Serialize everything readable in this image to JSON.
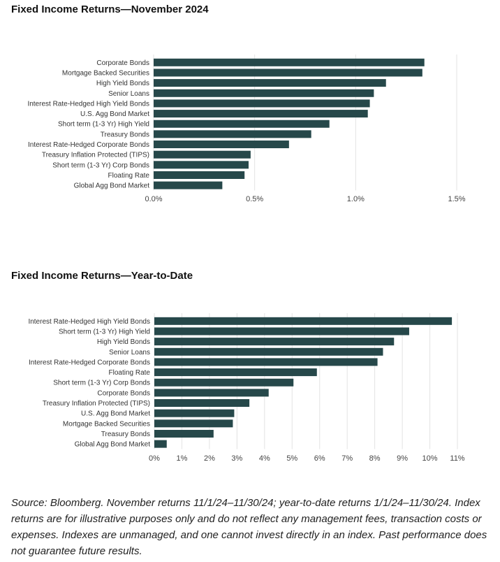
{
  "colors": {
    "bar": "#26484a",
    "grid": "#e3e3e3"
  },
  "chart_data": [
    {
      "type": "bar",
      "orientation": "horizontal",
      "title": "Fixed Income Returns—November 2024",
      "categories": [
        "Corporate Bonds",
        "Mortgage Backed Securities",
        "High Yield Bonds",
        "Senior Loans",
        "Interest Rate-Hedged High Yield Bonds",
        "U.S. Agg Bond Market",
        "Short term (1-3 Yr) High Yield",
        "Treasury Bonds",
        "Interest Rate-Hedged Corporate Bonds",
        "Treasury Inflation Protected (TIPS)",
        "Short term (1-3 Yr) Corp Bonds",
        "Floating Rate",
        "Global Agg Bond Market"
      ],
      "values": [
        1.34,
        1.33,
        1.15,
        1.09,
        1.07,
        1.06,
        0.87,
        0.78,
        0.67,
        0.48,
        0.47,
        0.45,
        0.34
      ],
      "xlim": [
        0,
        1.5
      ],
      "ticks": [
        0,
        0.5,
        1.0,
        1.5
      ],
      "tick_labels": [
        "0.0%",
        "0.5%",
        "1.0%",
        "1.5%"
      ],
      "grid": true
    },
    {
      "type": "bar",
      "orientation": "horizontal",
      "title": "Fixed Income Returns—Year-to-Date",
      "categories": [
        "Interest Rate-Hedged High Yield Bonds",
        "Short term (1-3 Yr) High Yield",
        "High Yield Bonds",
        "Senior Loans",
        "Interest Rate-Hedged Corporate Bonds",
        "Floating Rate",
        "Short term (1-3 Yr) Corp Bonds",
        "Corporate Bonds",
        "Treasury Inflation Protected (TIPS)",
        "U.S. Agg Bond Market",
        "Mortgage Backed Securities",
        "Treasury Bonds",
        "Global Agg Bond Market"
      ],
      "values": [
        10.8,
        9.25,
        8.7,
        8.3,
        8.1,
        5.9,
        5.05,
        4.15,
        3.45,
        2.9,
        2.85,
        2.15,
        0.45
      ],
      "xlim": [
        0,
        11
      ],
      "ticks": [
        0,
        1,
        2,
        3,
        4,
        5,
        6,
        7,
        8,
        9,
        10,
        11
      ],
      "tick_labels": [
        "0%",
        "1%",
        "2%",
        "3%",
        "4%",
        "5%",
        "6%",
        "7%",
        "8%",
        "9%",
        "10%",
        "11%"
      ],
      "grid": true
    }
  ],
  "footnote": "Source: Bloomberg. November returns 11/1/24–11/30/24; year-to-date returns 1/1/24–11/30/24. Index returns are for illustrative purposes only and do not reflect any management fees, transaction costs or expenses. Indexes are unmanaged, and one cannot invest directly in an index. Past performance does not guarantee future results."
}
